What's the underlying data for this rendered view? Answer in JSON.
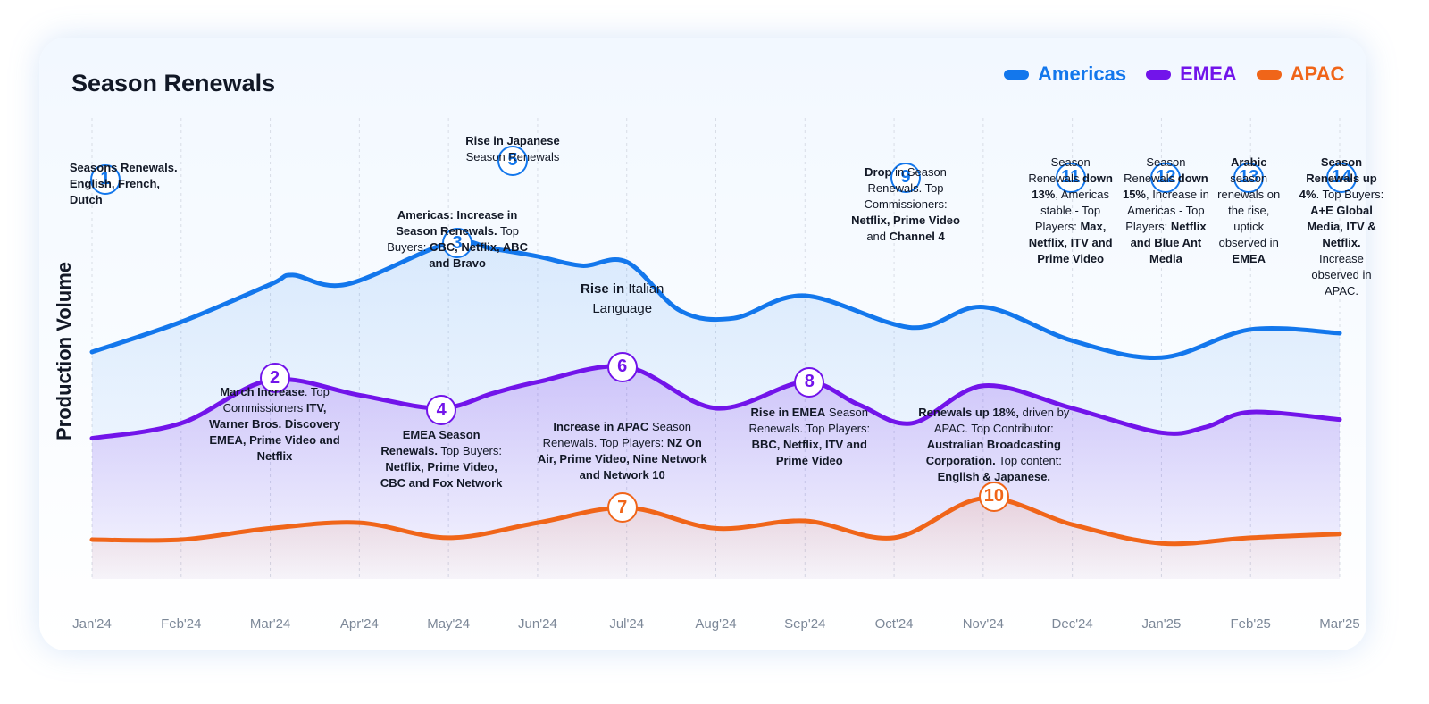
{
  "colors": {
    "americas": "#1377ec",
    "emea": "#7214ea",
    "apac": "#f06519"
  },
  "chart_data": {
    "type": "area",
    "title": "Season Renewals",
    "ylabel": "Production Volume",
    "xlabel": "",
    "categories": [
      "Jan'24",
      "Feb'24",
      "Mar'24",
      "Apr'24",
      "May'24",
      "Jun'24",
      "Jul'24",
      "Aug'24",
      "Sep'24",
      "Oct'24",
      "Nov'24",
      "Dec'24",
      "Jan'25",
      "Feb'25",
      "Mar'25"
    ],
    "ylim": [
      0,
      100
    ],
    "series": [
      {
        "name": "Americas",
        "values": [
          [
            0,
            55
          ],
          [
            1,
            63
          ],
          [
            2,
            73
          ],
          [
            2.25,
            75.5
          ],
          [
            2.85,
            73
          ],
          [
            4,
            84
          ],
          [
            4.5,
            82.5
          ],
          [
            5,
            80.5
          ],
          [
            5.5,
            78
          ],
          [
            6,
            79
          ],
          [
            6.6,
            66
          ],
          [
            7.2,
            64
          ],
          [
            8,
            70
          ],
          [
            9.2,
            61.5
          ],
          [
            10,
            67
          ],
          [
            11,
            58
          ],
          [
            12,
            53.5
          ],
          [
            13,
            61
          ],
          [
            14,
            60
          ]
        ]
      },
      {
        "name": "EMEA",
        "values": [
          [
            0,
            32
          ],
          [
            1,
            36
          ],
          [
            2,
            47.5
          ],
          [
            3,
            43.5
          ],
          [
            3.9,
            40
          ],
          [
            4.5,
            44
          ],
          [
            5,
            47
          ],
          [
            6,
            51
          ],
          [
            7,
            40
          ],
          [
            8,
            47
          ],
          [
            8.6,
            41
          ],
          [
            9.2,
            36
          ],
          [
            10,
            46
          ],
          [
            11,
            40
          ],
          [
            12,
            33.5
          ],
          [
            12.5,
            35
          ],
          [
            13,
            39
          ],
          [
            14,
            37
          ]
        ]
      },
      {
        "name": "APAC",
        "values": [
          [
            0,
            5
          ],
          [
            1,
            5
          ],
          [
            2,
            8
          ],
          [
            3,
            9.5
          ],
          [
            4,
            5.5
          ],
          [
            5,
            9.5
          ],
          [
            6,
            13.5
          ],
          [
            7,
            8
          ],
          [
            8,
            10
          ],
          [
            9,
            5.5
          ],
          [
            10,
            16
          ],
          [
            11,
            9
          ],
          [
            12,
            4
          ],
          [
            13,
            5.5
          ],
          [
            14,
            6.5
          ]
        ]
      }
    ]
  },
  "annotations": [
    {
      "num": "1",
      "series": "americas",
      "x": 0.15,
      "y": 101,
      "parts": [
        {
          "t": "Seasons Renewals.",
          "b": true
        },
        {
          "t": " English, French, Dutch",
          "b": true
        }
      ],
      "nx": 0.45,
      "ny": 179,
      "w": 140,
      "align": "left"
    },
    {
      "num": "2",
      "series": "emea",
      "x": 2.05,
      "y": 48,
      "parts": [
        {
          "t": "March Increase",
          "b": true
        },
        {
          "t": ". Top Commissioners ",
          "b": false
        },
        {
          "t": "ITV, Warner Bros. Discovery EMEA, Prime Video and Netflix",
          "b": true
        }
      ],
      "nx": 2.05,
      "ny": 430,
      "w": 160
    },
    {
      "num": "3",
      "series": "americas",
      "x": 4.1,
      "y": 84,
      "parts": [
        {
          "t": "Americas: Increase in Season Renewals.",
          "b": true
        },
        {
          "t": " Top Buyers: ",
          "b": false
        },
        {
          "t": "CBC, Netflix, ABC and Bravo",
          "b": true
        }
      ],
      "nx": 4.1,
      "ny": 232,
      "w": 180
    },
    {
      "num": "4",
      "series": "emea",
      "x": 3.92,
      "y": 39.5,
      "parts": [
        {
          "t": "EMEA Season Renewals.",
          "b": true
        },
        {
          "t": " Top Buyers: ",
          "b": false
        },
        {
          "t": "Netflix, Prime Video, CBC and Fox Network",
          "b": true
        }
      ],
      "nx": 3.92,
      "ny": 478,
      "w": 150
    },
    {
      "num": "5",
      "series": "americas",
      "x": 4.72,
      "y": 106,
      "parts": [
        {
          "t": "Rise in Japanese",
          "b": true
        },
        {
          "t": " Season Renewals",
          "b": false
        }
      ],
      "nx": 4.72,
      "ny": 149,
      "w": 130
    },
    {
      "num": "6",
      "series": "emea",
      "x": 5.95,
      "y": 51,
      "parts": [
        {
          "t": "Rise in",
          "b": true
        },
        {
          "t": " Italian Language",
          "b": false
        }
      ],
      "nx": 5.95,
      "ny": 313,
      "w": 110,
      "big": true
    },
    {
      "num": "7",
      "series": "apac",
      "x": 5.95,
      "y": 13.5,
      "parts": [
        {
          "t": "Increase in APAC",
          "b": true
        },
        {
          "t": " Season Renewals. Top Players: ",
          "b": false
        },
        {
          "t": "NZ On Air, Prime Video, Nine Network and Network 10",
          "b": true
        }
      ],
      "nx": 5.95,
      "ny": 469,
      "w": 190
    },
    {
      "num": "8",
      "series": "emea",
      "x": 8.05,
      "y": 47,
      "parts": [
        {
          "t": "Rise in EMEA",
          "b": true
        },
        {
          "t": " Season Renewals. Top Players: ",
          "b": false
        },
        {
          "t": "BBC, Netflix, ITV and Prime Video",
          "b": true
        }
      ],
      "nx": 8.05,
      "ny": 453,
      "w": 140
    },
    {
      "num": "9",
      "series": "americas",
      "x": 9.13,
      "y": 101.5,
      "parts": [
        {
          "t": "Drop",
          "b": true
        },
        {
          "t": " in Season Renewals. Top Commissioners: ",
          "b": false
        },
        {
          "t": "Netflix, Prime Video",
          "b": true
        },
        {
          "t": " and ",
          "b": false
        },
        {
          "t": "Channel 4",
          "b": true
        }
      ],
      "nx": 9.13,
      "ny": 184,
      "w": 140
    },
    {
      "num": "10",
      "series": "apac",
      "x": 10.12,
      "y": 16.5,
      "parts": [
        {
          "t": "Renewals up 18%,",
          "b": true
        },
        {
          "t": " driven by APAC. Top Contributor: ",
          "b": false
        },
        {
          "t": "Australian Broadcasting Corporation.",
          "b": true
        },
        {
          "t": " Top content: ",
          "b": false
        },
        {
          "t": "English & Japanese.",
          "b": true
        }
      ],
      "nx": 10.12,
      "ny": 453,
      "w": 170
    },
    {
      "num": "11",
      "series": "americas",
      "x": 10.98,
      "y": 101.5,
      "parts": [
        {
          "t": "Season Renewals ",
          "b": false
        },
        {
          "t": "down 13%",
          "b": true
        },
        {
          "t": ", Americas stable - Top Players: ",
          "b": false
        },
        {
          "t": "Max, Netflix, ITV and Prime Video",
          "b": true
        }
      ],
      "nx": 10.98,
      "ny": 173,
      "w": 100
    },
    {
      "num": "12",
      "series": "americas",
      "x": 12.05,
      "y": 101.5,
      "parts": [
        {
          "t": "Season Renewals ",
          "b": false
        },
        {
          "t": "down 15%",
          "b": true
        },
        {
          "t": ", Increase in Americas - Top Players: ",
          "b": false
        },
        {
          "t": "Netflix and Blue Ant Media",
          "b": true
        }
      ],
      "nx": 12.05,
      "ny": 173,
      "w": 100
    },
    {
      "num": "13",
      "series": "americas",
      "x": 12.98,
      "y": 101.5,
      "parts": [
        {
          "t": "Arabic",
          "b": true
        },
        {
          "t": " season renewals on the rise, uptick observed in ",
          "b": false
        },
        {
          "t": "EMEA",
          "b": true
        }
      ],
      "nx": 12.98,
      "ny": 173,
      "w": 80
    },
    {
      "num": "14",
      "series": "americas",
      "x": 14.02,
      "y": 101.5,
      "parts": [
        {
          "t": "Season Renewals up 4%",
          "b": true
        },
        {
          "t": ". Top Buyers: ",
          "b": false
        },
        {
          "t": "A+E Global Media, ITV & Netflix.",
          "b": true
        },
        {
          "t": " Increase observed in APAC.",
          "b": false
        }
      ],
      "nx": 14.02,
      "ny": 173,
      "w": 96
    }
  ]
}
